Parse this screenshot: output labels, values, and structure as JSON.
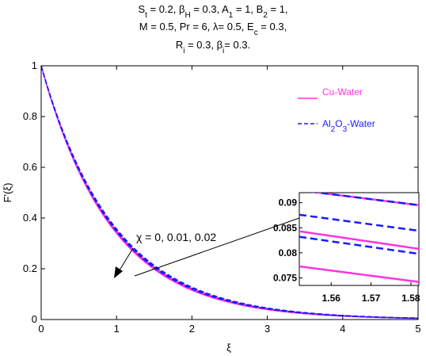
{
  "chart_data": {
    "type": "line",
    "title_lines": [
      [
        "S",
        "t",
        " = 0.2,  β",
        "H",
        " = 0.3, A",
        "1",
        " = 1, B",
        "2",
        " = 1,"
      ],
      [
        "M = 0.5, Pr = 6, λ= 0.5, E",
        "c",
        " = 0.3,"
      ],
      [
        "R",
        "i",
        " = 0.3, β",
        "i",
        "= 0.3."
      ]
    ],
    "xlabel": "ξ",
    "ylabel": "F'(ξ)",
    "xlim": [
      0,
      5
    ],
    "ylim": [
      0,
      1
    ],
    "x_ticks": [
      "0",
      "1",
      "2",
      "3",
      "4",
      "5"
    ],
    "y_ticks": [
      "0",
      "0.2",
      "0.4",
      "0.6",
      "0.8",
      "1"
    ],
    "x_tick_values": [
      0,
      1,
      2,
      3,
      4,
      5
    ],
    "y_tick_values": [
      0,
      0.2,
      0.4,
      0.6,
      0.8,
      1
    ],
    "legend": {
      "position": "top-right",
      "cu_label": "Cu-Water",
      "al_label": [
        "Al",
        "2",
        "O",
        "3",
        "-Water"
      ]
    },
    "colors": {
      "cu": "#ff33dd",
      "al": "#1a1aff"
    },
    "annotation": "χ = 0, 0.01, 0.02",
    "series": [
      {
        "group": "cu",
        "style": "solid",
        "decay": [
          1.05,
          1.065,
          1.08
        ]
      },
      {
        "group": "al",
        "style": "dashed",
        "decay": [
          1.03,
          1.045,
          1.06
        ]
      }
    ],
    "inset": {
      "xlim": [
        1.552,
        1.582
      ],
      "ylim": [
        0.0735,
        0.092
      ],
      "x_ticks": [
        "1.56",
        "1.57",
        "1.58"
      ],
      "y_ticks": [
        "0.075",
        "0.08",
        "0.085",
        "0.09"
      ],
      "x_tick_values": [
        1.56,
        1.57,
        1.58
      ],
      "y_tick_values": [
        0.075,
        0.08,
        0.085,
        0.09
      ],
      "lines": [
        {
          "group": "cu",
          "style": "solid",
          "y": [
            0.0925,
            0.0895
          ]
        },
        {
          "group": "al",
          "style": "dashed",
          "y": [
            0.0925,
            0.0895
          ]
        },
        {
          "group": "al",
          "style": "dashed",
          "y": [
            0.0876,
            0.0844
          ]
        },
        {
          "group": "cu",
          "style": "solid",
          "y": [
            0.0843,
            0.0808
          ]
        },
        {
          "group": "al",
          "style": "dashed",
          "y": [
            0.0832,
            0.0798
          ]
        },
        {
          "group": "cu",
          "style": "solid",
          "y": [
            0.0773,
            0.0742
          ]
        }
      ]
    }
  }
}
